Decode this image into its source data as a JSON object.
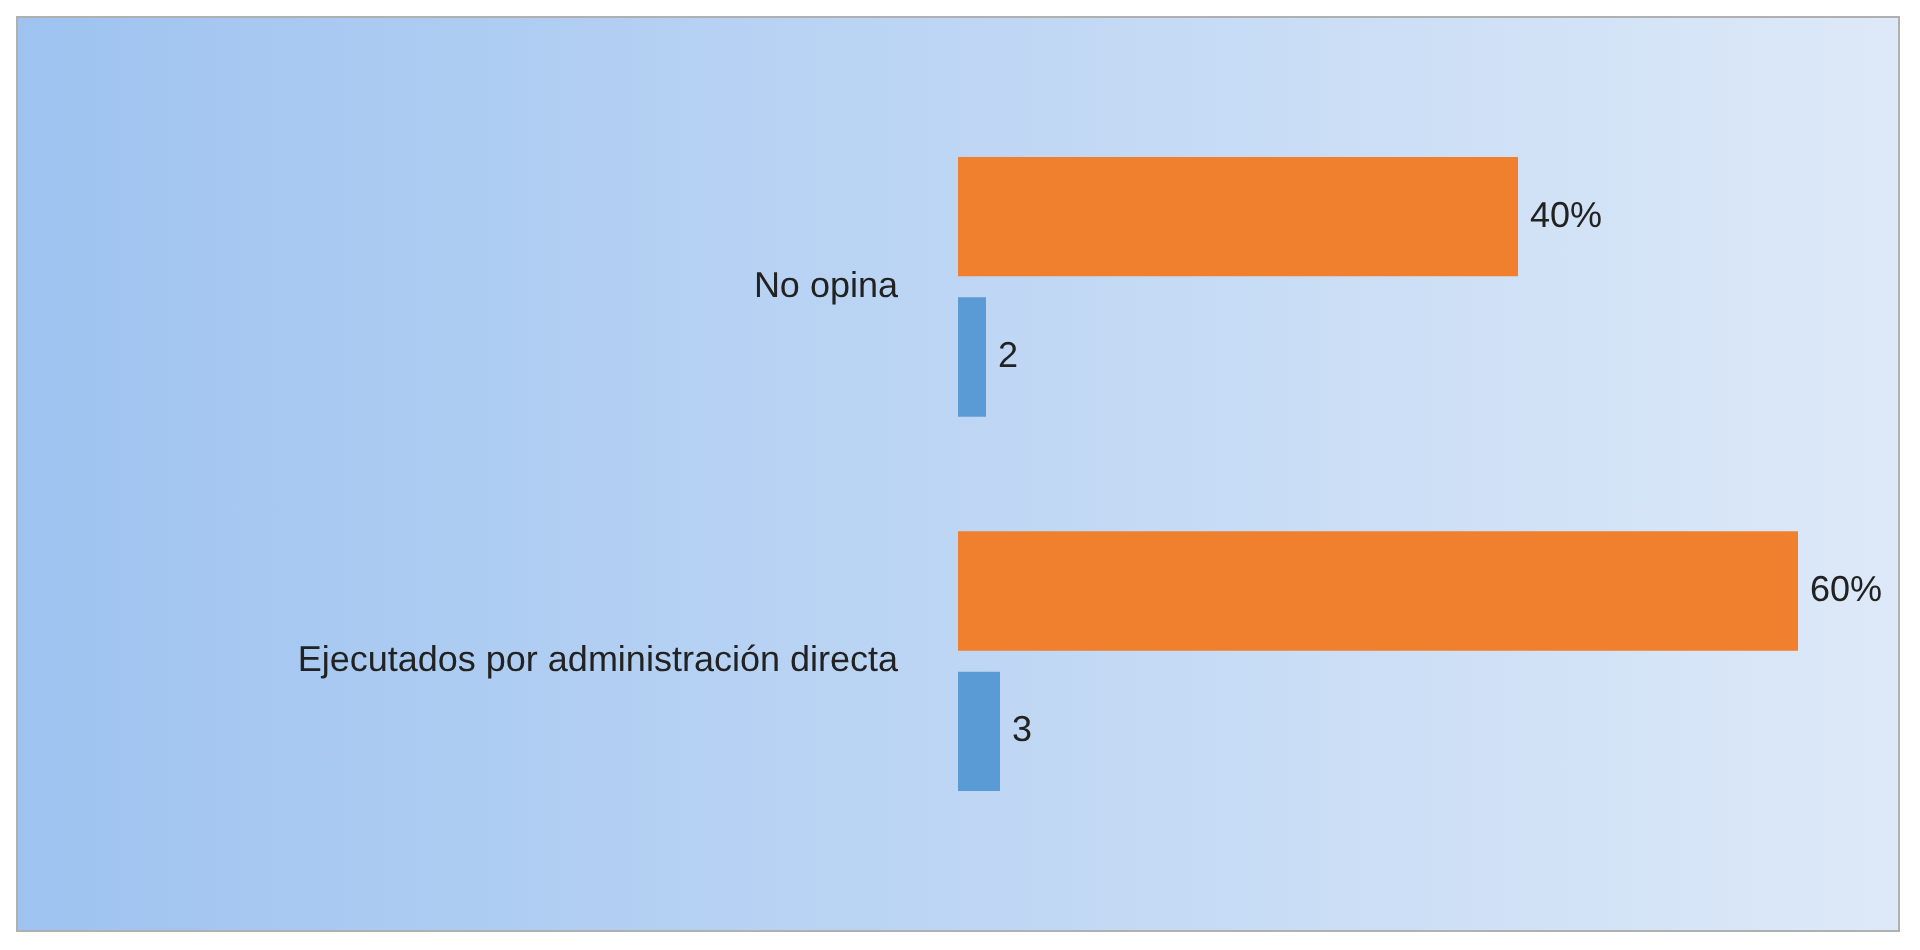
{
  "chart_data": {
    "type": "bar",
    "orientation": "horizontal",
    "categories": [
      "No opina",
      "Ejecutados por administración directa"
    ],
    "series": [
      {
        "color": "#5b9bd5",
        "values": [
          2,
          3
        ],
        "value_labels": [
          "2",
          "3"
        ]
      },
      {
        "color": "#f07f2e",
        "values": [
          40,
          60
        ],
        "value_labels": [
          "40%",
          "60%"
        ]
      }
    ],
    "legend": false,
    "grid": false
  }
}
